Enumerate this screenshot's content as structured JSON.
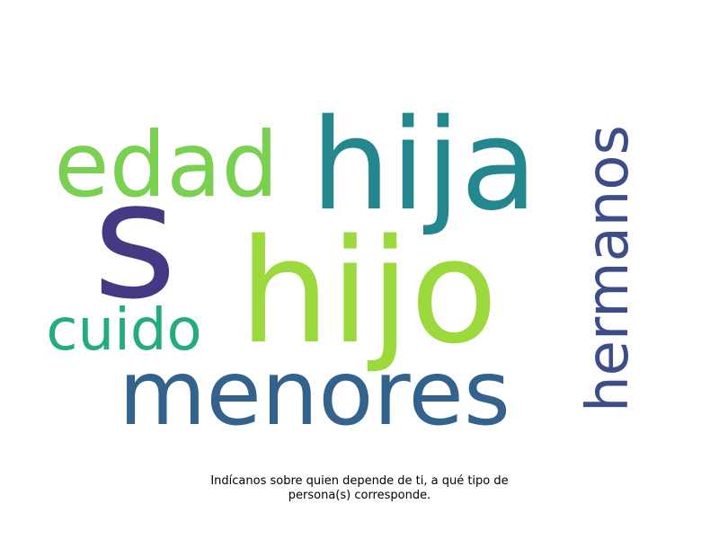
{
  "words": [
    {
      "text": "s",
      "color": "#443a83"
    },
    {
      "text": "hija",
      "color": "#24878e"
    },
    {
      "text": "hijo",
      "color": "#9bd93c"
    },
    {
      "text": "edad",
      "color": "#7ad151"
    },
    {
      "text": "menores",
      "color": "#33628d"
    },
    {
      "text": "cuido",
      "color": "#25ab82"
    },
    {
      "text": "hermanos",
      "color": "#3e4c8a"
    }
  ],
  "caption": {
    "line1": "Indícanos sobre quien depende de ti, a qué tipo de",
    "line2": "persona(s) corresponde."
  }
}
